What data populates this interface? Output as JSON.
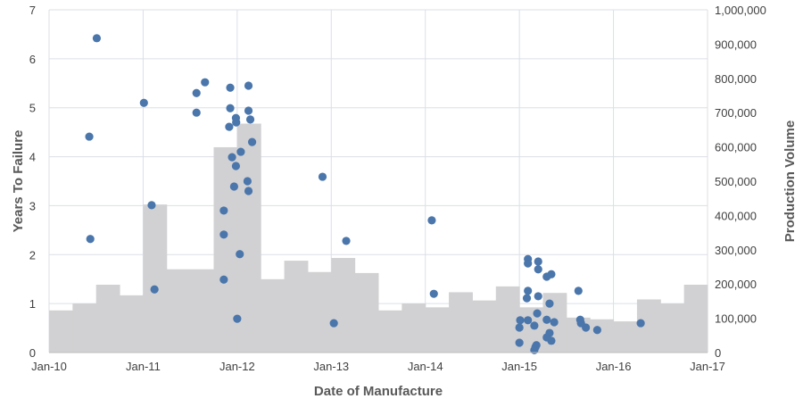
{
  "chart_data": {
    "type": "scatter",
    "title": "",
    "xlabel": "Date of Manufacture",
    "ylabel": "Years To Failure",
    "y2label": "Production Volume",
    "xlim": [
      "2010-01-01",
      "2017-01-01"
    ],
    "ylim": [
      0,
      7
    ],
    "y2lim": [
      0,
      1000000
    ],
    "grid": true,
    "x_ticks": [
      "Jan-10",
      "Jan-11",
      "Jan-12",
      "Jan-13",
      "Jan-14",
      "Jan-15",
      "Jan-16",
      "Jan-17"
    ],
    "y_ticks": [
      "0",
      "1",
      "2",
      "3",
      "4",
      "5",
      "6",
      "7"
    ],
    "y2_ticks": [
      "0",
      "100,000",
      "200,000",
      "300,000",
      "400,000",
      "500,000",
      "600,000",
      "700,000",
      "800,000",
      "900,000",
      "1,000,000"
    ],
    "colors": {
      "points": "#4a76ab",
      "bars": "#d1d1d3",
      "grid": "#dcdfe6"
    },
    "production_volume": {
      "type": "bar",
      "axis": "right",
      "period": "quarter",
      "quarters": [
        "2010-Q1",
        "2010-Q2",
        "2010-Q3",
        "2010-Q4",
        "2011-Q1",
        "2011-Q2",
        "2011-Q3",
        "2011-Q4",
        "2012-Q1",
        "2012-Q2",
        "2012-Q3",
        "2012-Q4",
        "2013-Q1",
        "2013-Q2",
        "2013-Q3",
        "2013-Q4",
        "2014-Q1",
        "2014-Q2",
        "2014-Q3",
        "2014-Q4",
        "2015-Q1",
        "2015-Q2",
        "2015-Q3",
        "2015-Q4",
        "2016-Q1",
        "2016-Q2",
        "2016-Q3",
        "2016-Q4"
      ],
      "values": [
        123000,
        143000,
        198000,
        167000,
        432000,
        243000,
        243000,
        599000,
        668000,
        214000,
        268000,
        235000,
        276000,
        232000,
        123000,
        143000,
        132000,
        176000,
        152000,
        193000,
        132000,
        174000,
        102000,
        97000,
        91000,
        155000,
        143000,
        198000
      ]
    },
    "failures": {
      "type": "scatter",
      "axis": "left",
      "points": [
        [
          "2010-07-05",
          6.42
        ],
        [
          "2010-06-06",
          4.41
        ],
        [
          "2010-06-10",
          2.32
        ],
        [
          "2011-01-04",
          5.1
        ],
        [
          "2011-02-03",
          3.01
        ],
        [
          "2011-02-14",
          1.29
        ],
        [
          "2011-07-27",
          5.3
        ],
        [
          "2011-07-27",
          4.9
        ],
        [
          "2011-08-29",
          5.52
        ],
        [
          "2011-12-05",
          5.41
        ],
        [
          "2012-02-14",
          5.45
        ],
        [
          "2011-12-05",
          4.99
        ],
        [
          "2012-02-14",
          4.94
        ],
        [
          "2011-12-27",
          4.79
        ],
        [
          "2011-12-28",
          4.7
        ],
        [
          "2012-02-21",
          4.76
        ],
        [
          "2011-12-01",
          4.61
        ],
        [
          "2012-02-28",
          4.3
        ],
        [
          "2012-01-15",
          4.1
        ],
        [
          "2011-12-12",
          3.99
        ],
        [
          "2011-12-27",
          3.81
        ],
        [
          "2012-02-10",
          3.5
        ],
        [
          "2011-12-20",
          3.39
        ],
        [
          "2012-02-14",
          3.3
        ],
        [
          "2011-11-10",
          2.9
        ],
        [
          "2011-11-10",
          2.41
        ],
        [
          "2012-01-11",
          2.01
        ],
        [
          "2011-11-10",
          1.49
        ],
        [
          "2012-01-01",
          0.69
        ],
        [
          "2012-11-28",
          3.59
        ],
        [
          "2013-02-28",
          2.28
        ],
        [
          "2013-01-11",
          0.6
        ],
        [
          "2014-01-26",
          2.7
        ],
        [
          "2014-02-03",
          1.2
        ],
        [
          "2015-02-03",
          1.91
        ],
        [
          "2015-02-03",
          1.82
        ],
        [
          "2015-02-03",
          1.26
        ],
        [
          "2015-01-30",
          1.11
        ],
        [
          "2015-03-15",
          1.86
        ],
        [
          "2015-03-15",
          1.7
        ],
        [
          "2015-03-15",
          1.15
        ],
        [
          "2015-04-17",
          1.55
        ],
        [
          "2015-05-05",
          1.6
        ],
        [
          "2015-04-28",
          1.0
        ],
        [
          "2015-08-18",
          1.26
        ],
        [
          "2015-03-11",
          0.8
        ],
        [
          "2015-01-04",
          0.66
        ],
        [
          "2015-02-03",
          0.66
        ],
        [
          "2015-04-17",
          0.67
        ],
        [
          "2015-05-16",
          0.62
        ],
        [
          "2015-01-01",
          0.51
        ],
        [
          "2015-02-28",
          0.55
        ],
        [
          "2015-08-25",
          0.67
        ],
        [
          "2015-08-28",
          0.6
        ],
        [
          "2015-09-16",
          0.51
        ],
        [
          "2015-10-30",
          0.46
        ],
        [
          "2016-04-16",
          0.6
        ],
        [
          "2015-04-28",
          0.4
        ],
        [
          "2015-04-17",
          0.31
        ],
        [
          "2015-05-05",
          0.24
        ],
        [
          "2015-01-01",
          0.2
        ],
        [
          "2015-03-08",
          0.15
        ],
        [
          "2015-03-04",
          0.11
        ],
        [
          "2015-02-28",
          0.05
        ]
      ]
    }
  }
}
